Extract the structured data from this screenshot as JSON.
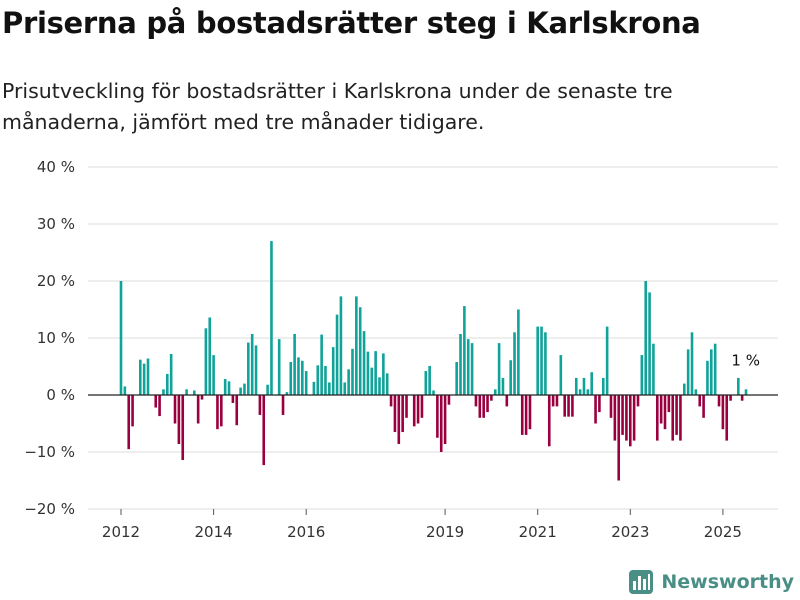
{
  "title": "Priserna på bostadsrätter steg i Karlskrona",
  "subtitle": "Prisutveckling för bostadsrätter i Karlskrona under de senaste tre månaderna, jämfört med tre månader tidigare.",
  "brand": {
    "name": "Newsworthy",
    "icon": "bar-chart-logo-icon"
  },
  "colors": {
    "positive": "#0fa399",
    "negative": "#9a003f",
    "grid": "#dddddd",
    "axis": "#222222"
  },
  "chart_data": {
    "type": "bar",
    "ylim": [
      -20,
      40
    ],
    "yticks": [
      40,
      30,
      20,
      10,
      0,
      -10,
      -20
    ],
    "ytick_labels": [
      "40 %",
      "30 %",
      "20 %",
      "10 %",
      "0 %",
      "−10 %",
      "−20 %"
    ],
    "xticks": [
      2012,
      2014,
      2016,
      2019,
      2021,
      2023,
      2025
    ],
    "xtick_labels": [
      "2012",
      "2014",
      "2016",
      "2019",
      "2021",
      "2023",
      "2025"
    ],
    "x_start": 2012.0,
    "x_step": 0.08333,
    "values": [
      20,
      1.5,
      -9.5,
      -5.5,
      null,
      6.2,
      5.5,
      6.4,
      null,
      -2.2,
      -3.7,
      1,
      3.7,
      7.2,
      -5,
      -8.6,
      -11.4,
      1,
      null,
      0.8,
      -5,
      -0.8,
      11.7,
      13.6,
      7,
      -6,
      -5.5,
      2.8,
      2.4,
      -1.4,
      -5.3,
      1.3,
      2,
      9.2,
      10.7,
      8.7,
      -3.5,
      -12.3,
      1.8,
      27,
      null,
      9.8,
      -3.5,
      0.5,
      5.8,
      10.7,
      6.6,
      6,
      4.2,
      null,
      2.3,
      5.2,
      10.6,
      5.1,
      2.2,
      8.4,
      14.1,
      17.3,
      2.2,
      4.5,
      8.1,
      17.3,
      15.4,
      11.2,
      7.6,
      4.8,
      7.7,
      3.1,
      7.3,
      3.8,
      -2,
      -6.5,
      -8.6,
      -6.5,
      -4,
      null,
      -5.5,
      -5,
      -4,
      4.2,
      5.1,
      0.8,
      -7.5,
      -10,
      -8.6,
      -1.7,
      null,
      5.8,
      10.7,
      15.6,
      9.8,
      9.1,
      -2,
      -4,
      -4,
      -3,
      -1,
      1,
      9.1,
      3,
      -2,
      6.1,
      11,
      15,
      -7,
      -7,
      -6,
      null,
      12,
      12,
      11,
      -9,
      -2,
      -2,
      7,
      -3.8,
      -3.8,
      -3.8,
      3,
      1,
      3,
      1,
      4,
      -5,
      -3,
      3,
      12,
      -4,
      -8,
      -15,
      -7,
      -8,
      -9,
      -8,
      -2,
      7,
      20,
      18,
      9,
      -8,
      -5,
      -6,
      -3,
      -8,
      -7,
      -8,
      2,
      8,
      11,
      1,
      -2,
      -4,
      6,
      8,
      9,
      -2,
      -6,
      -8,
      -1,
      null,
      3,
      -1,
      1
    ],
    "annotation": {
      "text": "1 %",
      "x": 2025.4,
      "y": 1
    }
  }
}
